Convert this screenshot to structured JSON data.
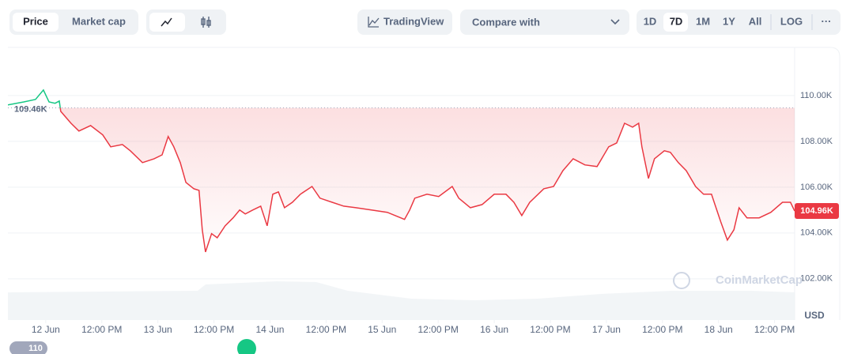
{
  "toolbar": {
    "price": "Price",
    "market_cap": "Market cap",
    "tradingview": "TradingView",
    "compare": "Compare with",
    "ranges": [
      "1D",
      "7D",
      "1M",
      "1Y",
      "All"
    ],
    "log": "LOG",
    "more": "···"
  },
  "watermark": "CoinMarketCap",
  "badge": "110",
  "chart_data": {
    "type": "line",
    "y_unit": "USD",
    "x": [
      -8.1,
      -4.7,
      -2.2,
      -0.5,
      0.7,
      2.0,
      2.9,
      3.2,
      5.4,
      7.1,
      9.6,
      12.2,
      13.9,
      16.4,
      18.1,
      20.7,
      23.2,
      24.9,
      26.2,
      27.4,
      28.8,
      30.0,
      31.7,
      32.8,
      33.5,
      34.2,
      35.5,
      36.7,
      38.4,
      40.1,
      41.5,
      42.7,
      44.3,
      46.0,
      47.4,
      48.6,
      49.8,
      51.1,
      52.8,
      54.5,
      57.0,
      58.7,
      61.3,
      63.8,
      66.4,
      69.7,
      73.1,
      74.8,
      76.8,
      77.9,
      79.0,
      81.6,
      84.1,
      87.0,
      88.4,
      90.9,
      93.4,
      96.0,
      98.5,
      100.2,
      101.9,
      103.6,
      106.6,
      108.7,
      110.7,
      112.9,
      115.4,
      118.0,
      120.5,
      122.2,
      123.9,
      125.6,
      126.9,
      127.6,
      129.0,
      130.3,
      132.4,
      133.7,
      135.4,
      137.1,
      139.1,
      140.8,
      142.5,
      144.5,
      145.9,
      147.3,
      148.4,
      150.1,
      152.7,
      155.2,
      157.7,
      159.4,
      160.3
    ],
    "series": [
      {
        "name": "Price",
        "color": "#ea3943",
        "color_above": "#16c784",
        "values": [
          109590,
          109720,
          109830,
          110240,
          109720,
          109660,
          109760,
          109310,
          108790,
          108450,
          108690,
          108280,
          107760,
          107860,
          107590,
          107070,
          107240,
          107410,
          108210,
          107760,
          107070,
          106210,
          105930,
          105860,
          104140,
          103170,
          103970,
          103790,
          104310,
          104660,
          105000,
          104830,
          105000,
          105170,
          104310,
          105690,
          105790,
          105100,
          105340,
          105690,
          106030,
          105520,
          105340,
          105170,
          105100,
          105000,
          104900,
          104760,
          104590,
          105000,
          105520,
          105690,
          105590,
          106030,
          105520,
          105100,
          105240,
          105690,
          105690,
          105340,
          104760,
          105340,
          105930,
          106030,
          106720,
          107240,
          106970,
          106900,
          107760,
          107930,
          108790,
          108620,
          108790,
          107760,
          106380,
          107240,
          107590,
          107520,
          107070,
          106720,
          106030,
          105690,
          105690,
          104480,
          103690,
          104140,
          105100,
          104660,
          104660,
          104900,
          105340,
          105340,
          104960
        ],
        "last_label": "104.96K"
      }
    ],
    "reference": {
      "value": 109460,
      "label": "109.46K"
    },
    "xlim": [
      -8.1,
      160.3
    ],
    "xticks": [
      {
        "value": 0,
        "label": "12 Jun"
      },
      {
        "value": 12,
        "label": "12:00 PM"
      },
      {
        "value": 24,
        "label": "13 Jun"
      },
      {
        "value": 36,
        "label": "12:00 PM"
      },
      {
        "value": 48,
        "label": "14 Jun"
      },
      {
        "value": 60,
        "label": "12:00 PM"
      },
      {
        "value": 72,
        "label": "15 Jun"
      },
      {
        "value": 84,
        "label": "12:00 PM"
      },
      {
        "value": 96,
        "label": "16 Jun"
      },
      {
        "value": 108,
        "label": "12:00 PM"
      },
      {
        "value": 120,
        "label": "17 Jun"
      },
      {
        "value": 132,
        "label": "12:00 PM"
      },
      {
        "value": 144,
        "label": "18 Jun"
      },
      {
        "value": 156,
        "label": "12:00 PM"
      }
    ],
    "ylim": [
      100200,
      112100
    ],
    "yticks": [
      {
        "value": 102000,
        "label": "102.00K"
      },
      {
        "value": 104000,
        "label": "104.00K"
      },
      {
        "value": 106000,
        "label": "106.00K"
      },
      {
        "value": 108000,
        "label": "108.00K"
      },
      {
        "value": 110000,
        "label": "110.00K"
      }
    ],
    "grid": true
  }
}
